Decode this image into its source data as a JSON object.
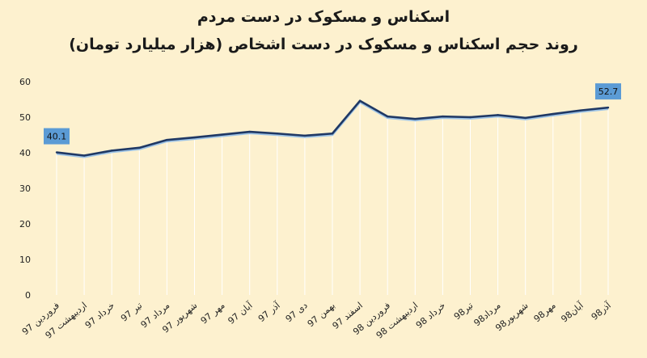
{
  "chart_data": {
    "type": "line",
    "title": "اسکناس و مسکوک در دست مردم",
    "subtitle": "روند حجم اسکناس و مسکوک در دست اشخاص (هزار میلیارد تومان)",
    "categories": [
      "فروردین 97",
      "اردیبهشت 97",
      "خرداد 97",
      "تیر 97",
      "مرداد 97",
      "شهریور 97",
      "مهر 97",
      "آبان 97",
      "آذر 97",
      "دی 97",
      "بهمن 97",
      "اسفند 97",
      "فروردین 98",
      "اردیبهشت 98",
      "خرداد 98",
      "تیر98",
      "مرداد98",
      "شهریور98",
      "مهر98",
      "آبان98",
      "آذر98"
    ],
    "values": [
      40.1,
      39.2,
      40.6,
      41.4,
      43.6,
      44.3,
      45.1,
      45.9,
      45.4,
      44.8,
      45.4,
      54.6,
      50.2,
      49.5,
      50.2,
      50.0,
      50.6,
      49.8,
      50.9,
      51.9,
      52.7
    ],
    "data_labels": [
      {
        "index": 0,
        "text": "40.1"
      },
      {
        "index": 20,
        "text": "52.7"
      }
    ],
    "ylim": [
      0,
      60
    ],
    "yticks": [
      0,
      10,
      20,
      30,
      40,
      50,
      60
    ],
    "grid": "vertical",
    "colors": {
      "line": "#1f3864",
      "line_highlight": "#9dc3e6",
      "grid": "#ffffff",
      "label_box": "#5b9bd5",
      "background": "#fdf1cf"
    }
  }
}
